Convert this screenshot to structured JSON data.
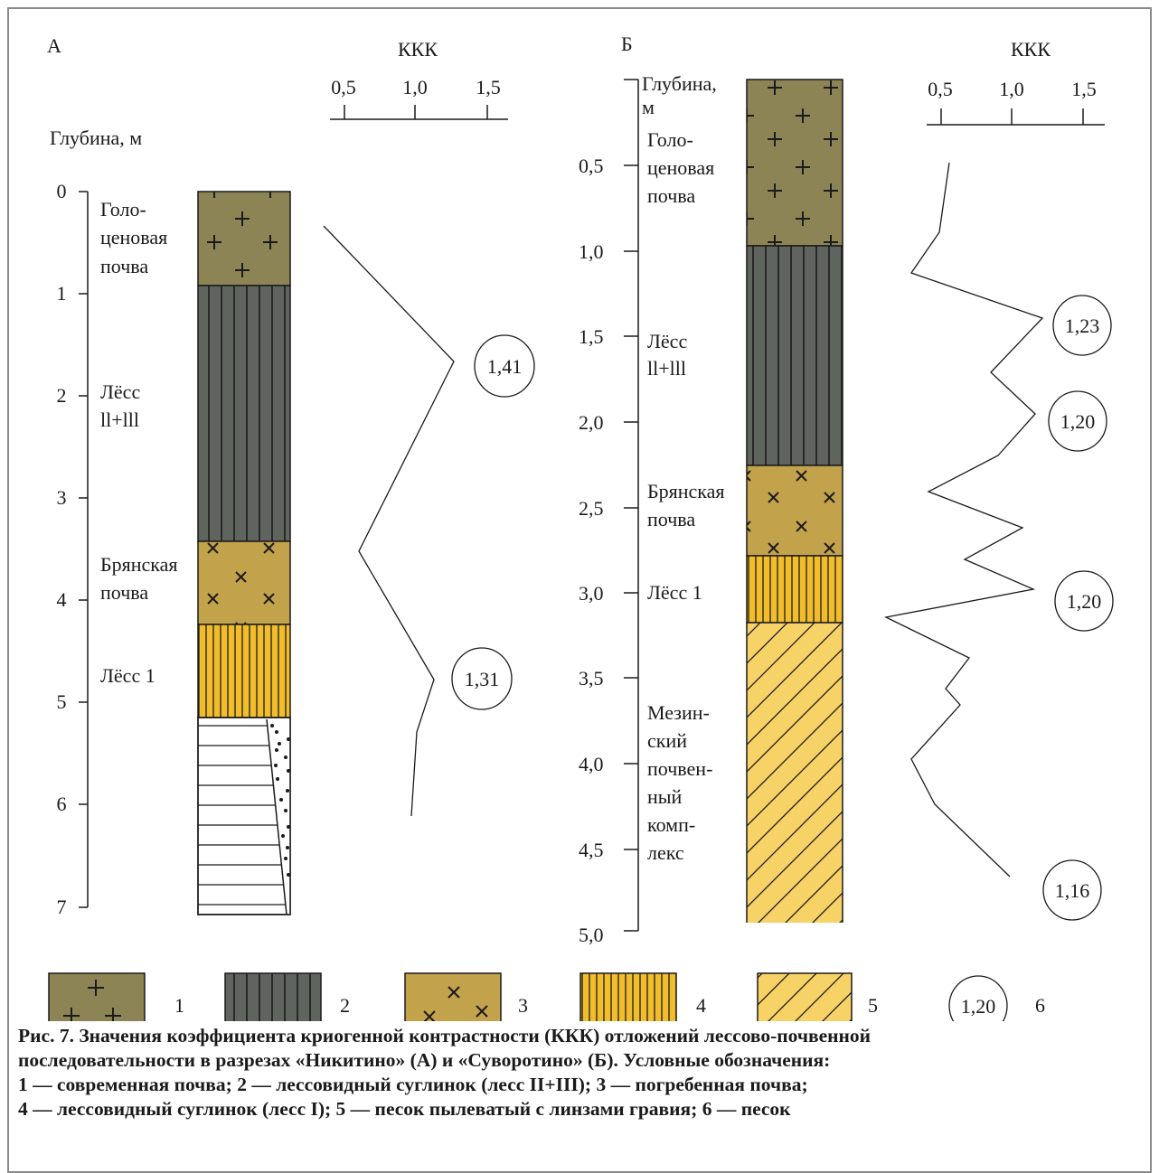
{
  "colors": {
    "holocene_soil": "#8c8455",
    "loess_2_3": "#5f645f",
    "bryansk_soil": "#c2a24b",
    "loess_1": "#f2bd2a",
    "mezin_complex": "#f7d266",
    "outline": "#1a1a1a"
  },
  "panel_a": {
    "letter": "А",
    "kkk_title": "ККК",
    "kkk_ticks": [
      "0,5",
      "1,0",
      "1,5"
    ],
    "depth_title": "Глубина, м",
    "depth_ticks": [
      "0",
      "1",
      "2",
      "3",
      "4",
      "5",
      "6",
      "7"
    ],
    "layers": [
      {
        "label": [
          "Голо-",
          "ценовая",
          "почва"
        ],
        "pattern": "1",
        "top_m": 0,
        "bottom_m": 0.9
      },
      {
        "label": [
          "Лёсс",
          "ll+lll"
        ],
        "pattern": "2",
        "top_m": 0.9,
        "bottom_m": 3.4
      },
      {
        "label": [
          "Брянская",
          "почва"
        ],
        "pattern": "3",
        "top_m": 3.4,
        "bottom_m": 4.2
      },
      {
        "label": [
          "Лёсс 1"
        ],
        "pattern": "4",
        "top_m": 4.2,
        "bottom_m": 5.15
      },
      {
        "label": [],
        "pattern": "sand",
        "top_m": 5.15,
        "bottom_m": 7.1
      }
    ],
    "peaks": [
      "1,41",
      "1,31"
    ]
  },
  "panel_b": {
    "letter": "Б",
    "kkk_title": "ККК",
    "kkk_ticks": [
      "0,5",
      "1,0",
      "1,5"
    ],
    "depth_title": [
      "Глубина,",
      "м"
    ],
    "depth_ticks": [
      "0,5",
      "1,0",
      "1,5",
      "2,0",
      "2,5",
      "3,0",
      "3,5",
      "4,0",
      "4,5",
      "5,0"
    ],
    "layers": [
      {
        "label": [
          "Голо-",
          "ценовая",
          "почва"
        ],
        "pattern": "1",
        "top_m": 0,
        "bottom_m": 0.97
      },
      {
        "label": [
          "Лёсс",
          "ll+lll"
        ],
        "pattern": "2",
        "top_m": 0.97,
        "bottom_m": 2.25
      },
      {
        "label": [
          "Брянская",
          "почва"
        ],
        "pattern": "3",
        "top_m": 2.25,
        "bottom_m": 2.78
      },
      {
        "label": [
          "Лёсс 1"
        ],
        "pattern": "4",
        "top_m": 2.78,
        "bottom_m": 3.18
      },
      {
        "label": [
          "Мезин-",
          "ский",
          "почвен-",
          "ный",
          "комп-",
          "лекс"
        ],
        "pattern": "5",
        "top_m": 3.18,
        "bottom_m": 4.95
      }
    ],
    "peaks": [
      "1,23",
      "1,20",
      "1,20",
      "1,16"
    ]
  },
  "legend": {
    "items": [
      "1",
      "2",
      "3",
      "4",
      "5",
      "6"
    ],
    "circle_value": "1,20"
  },
  "caption": [
    "Рис. 7. Значения коэффициента криогенной контрастности (ККК) отложений лессово-почвенной",
    "последовательности в разрезах «Никитино» (А) и «Суворотино» (Б). Условные обозначения:",
    "1 — современная почва; 2 — лессовидный суглинок (лесс II+III); 3 — погребенная почва;",
    "4 — лессовидный суглинок (лесс I); 5 — песок пылеватый с линзами гравия; 6 — песок"
  ]
}
